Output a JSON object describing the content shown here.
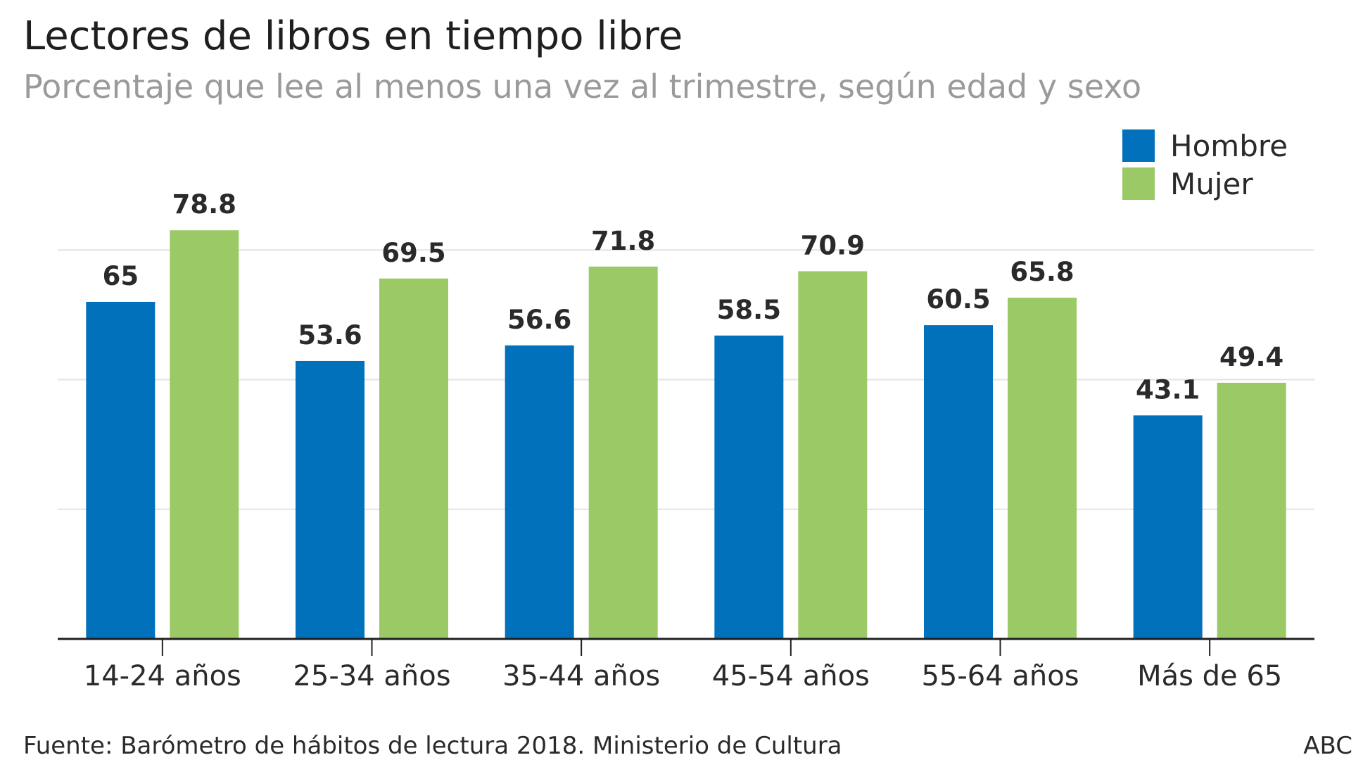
{
  "header": {
    "title": "Lectores de libros en tiempo libre",
    "subtitle": "Porcentaje que lee al menos una vez al trimestre, según edad y sexo"
  },
  "legend": [
    {
      "label": "Hombre",
      "color": "#0171bb"
    },
    {
      "label": "Mujer",
      "color": "#9ac965"
    }
  ],
  "footer": {
    "source": "Fuente: Barómetro de hábitos de lectura 2018. Ministerio de Cultura",
    "brand": "ABC"
  },
  "chart_data": {
    "type": "bar",
    "categories": [
      "14-24 años",
      "25-34 años",
      "35-44 años",
      "45-54 años",
      "55-64 años",
      "Más de 65"
    ],
    "series": [
      {
        "name": "Hombre",
        "color": "#0171bb",
        "values": [
          65,
          53.6,
          56.6,
          58.5,
          60.5,
          43.1
        ]
      },
      {
        "name": "Mujer",
        "color": "#9ac965",
        "values": [
          78.8,
          69.5,
          71.8,
          70.9,
          65.8,
          49.4
        ]
      }
    ],
    "ylim": [
      0,
      80
    ],
    "gridlines": [
      25,
      50,
      75
    ],
    "grid": true,
    "legend_position": "top-right",
    "data_labels": true
  }
}
